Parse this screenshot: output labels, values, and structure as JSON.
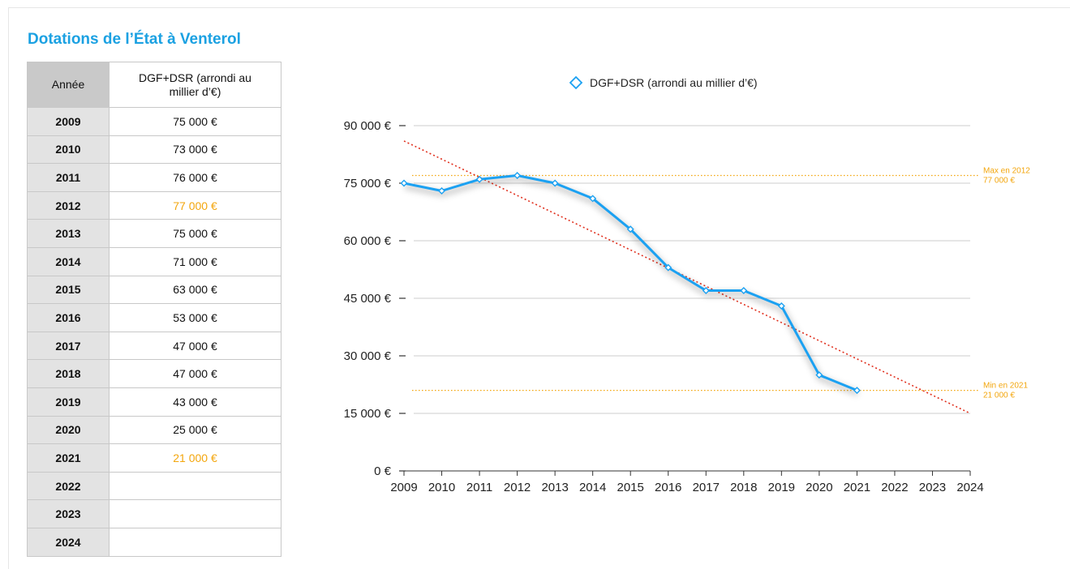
{
  "table": {
    "title": "Dotations de l’État à Venterol",
    "header_year": "Année",
    "header_value": "DGF+DSR (arrondi au millier d’€)",
    "rows": [
      {
        "year": "2009",
        "value": "75 000 €",
        "highlight": false
      },
      {
        "year": "2010",
        "value": "73 000 €",
        "highlight": false
      },
      {
        "year": "2011",
        "value": "76 000 €",
        "highlight": false
      },
      {
        "year": "2012",
        "value": "77 000 €",
        "highlight": true
      },
      {
        "year": "2013",
        "value": "75 000 €",
        "highlight": false
      },
      {
        "year": "2014",
        "value": "71 000 €",
        "highlight": false
      },
      {
        "year": "2015",
        "value": "63 000 €",
        "highlight": false
      },
      {
        "year": "2016",
        "value": "53 000 €",
        "highlight": false
      },
      {
        "year": "2017",
        "value": "47 000 €",
        "highlight": false
      },
      {
        "year": "2018",
        "value": "47 000 €",
        "highlight": false
      },
      {
        "year": "2019",
        "value": "43 000 €",
        "highlight": false
      },
      {
        "year": "2020",
        "value": "25 000 €",
        "highlight": false
      },
      {
        "year": "2021",
        "value": "21 000 €",
        "highlight": true
      },
      {
        "year": "2022",
        "value": "",
        "highlight": false
      },
      {
        "year": "2023",
        "value": "",
        "highlight": false
      },
      {
        "year": "2024",
        "value": "",
        "highlight": false
      }
    ]
  },
  "chart_data": {
    "type": "line",
    "categories": [
      "2009",
      "2010",
      "2011",
      "2012",
      "2013",
      "2014",
      "2015",
      "2016",
      "2017",
      "2018",
      "2019",
      "2020",
      "2021",
      "2022",
      "2023",
      "2024"
    ],
    "series": [
      {
        "name": "DGF+DSR (arrondi au millier d’€)",
        "values": [
          75000,
          73000,
          76000,
          77000,
          75000,
          71000,
          63000,
          53000,
          47000,
          47000,
          43000,
          25000,
          21000,
          null,
          null,
          null
        ],
        "color": "#1ba1f2"
      }
    ],
    "trendline": {
      "start_value": 86000,
      "end_value": 15000,
      "color": "#e0301e",
      "style": "dotted"
    },
    "reference_lines": [
      {
        "value": 77000,
        "label_line1": "Max en 2012",
        "label_line2": "77 000 €",
        "color": "#f3a60d"
      },
      {
        "value": 21000,
        "label_line1": "Min en 2021",
        "label_line2": "21 000 €",
        "color": "#f3a60d"
      }
    ],
    "y_ticks": [
      "0 €",
      "15 000 €",
      "30 000 €",
      "45 000 €",
      "60 000 €",
      "75 000 €",
      "90 000 €"
    ],
    "y_tick_values": [
      0,
      15000,
      30000,
      45000,
      60000,
      75000,
      90000
    ],
    "ylim": [
      0,
      90000
    ],
    "grid": true,
    "legend_position": "top-center",
    "highlight_color": "#f3a60d"
  }
}
